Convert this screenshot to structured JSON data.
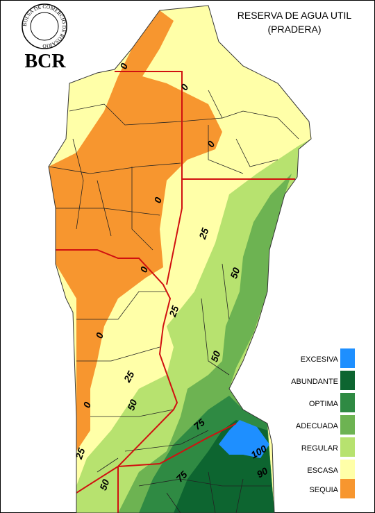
{
  "logo": {
    "ring_text": "BOLSA DE COMERCIO DE ROSARIO",
    "initials": "BCR"
  },
  "title": {
    "line1": "RESERVA DE AGUA UTIL",
    "line2": "(PRADERA)"
  },
  "legend": [
    {
      "label": "EXCESIVA",
      "color": "#1e8fff"
    },
    {
      "label": "ABUNDANTE",
      "color": "#0d6530"
    },
    {
      "label": "OPTIMA",
      "color": "#2f8a43"
    },
    {
      "label": "ADECUADA",
      "color": "#6db352"
    },
    {
      "label": "REGULAR",
      "color": "#b7e26f"
    },
    {
      "label": "ESCASA",
      "color": "#ffffa8"
    },
    {
      "label": "SEQUIA",
      "color": "#f7962f"
    }
  ],
  "contour_labels": [
    0,
    0,
    0,
    0,
    25,
    50,
    0,
    25,
    50,
    0,
    25,
    50,
    0,
    75,
    25,
    50,
    75,
    100,
    90
  ]
}
